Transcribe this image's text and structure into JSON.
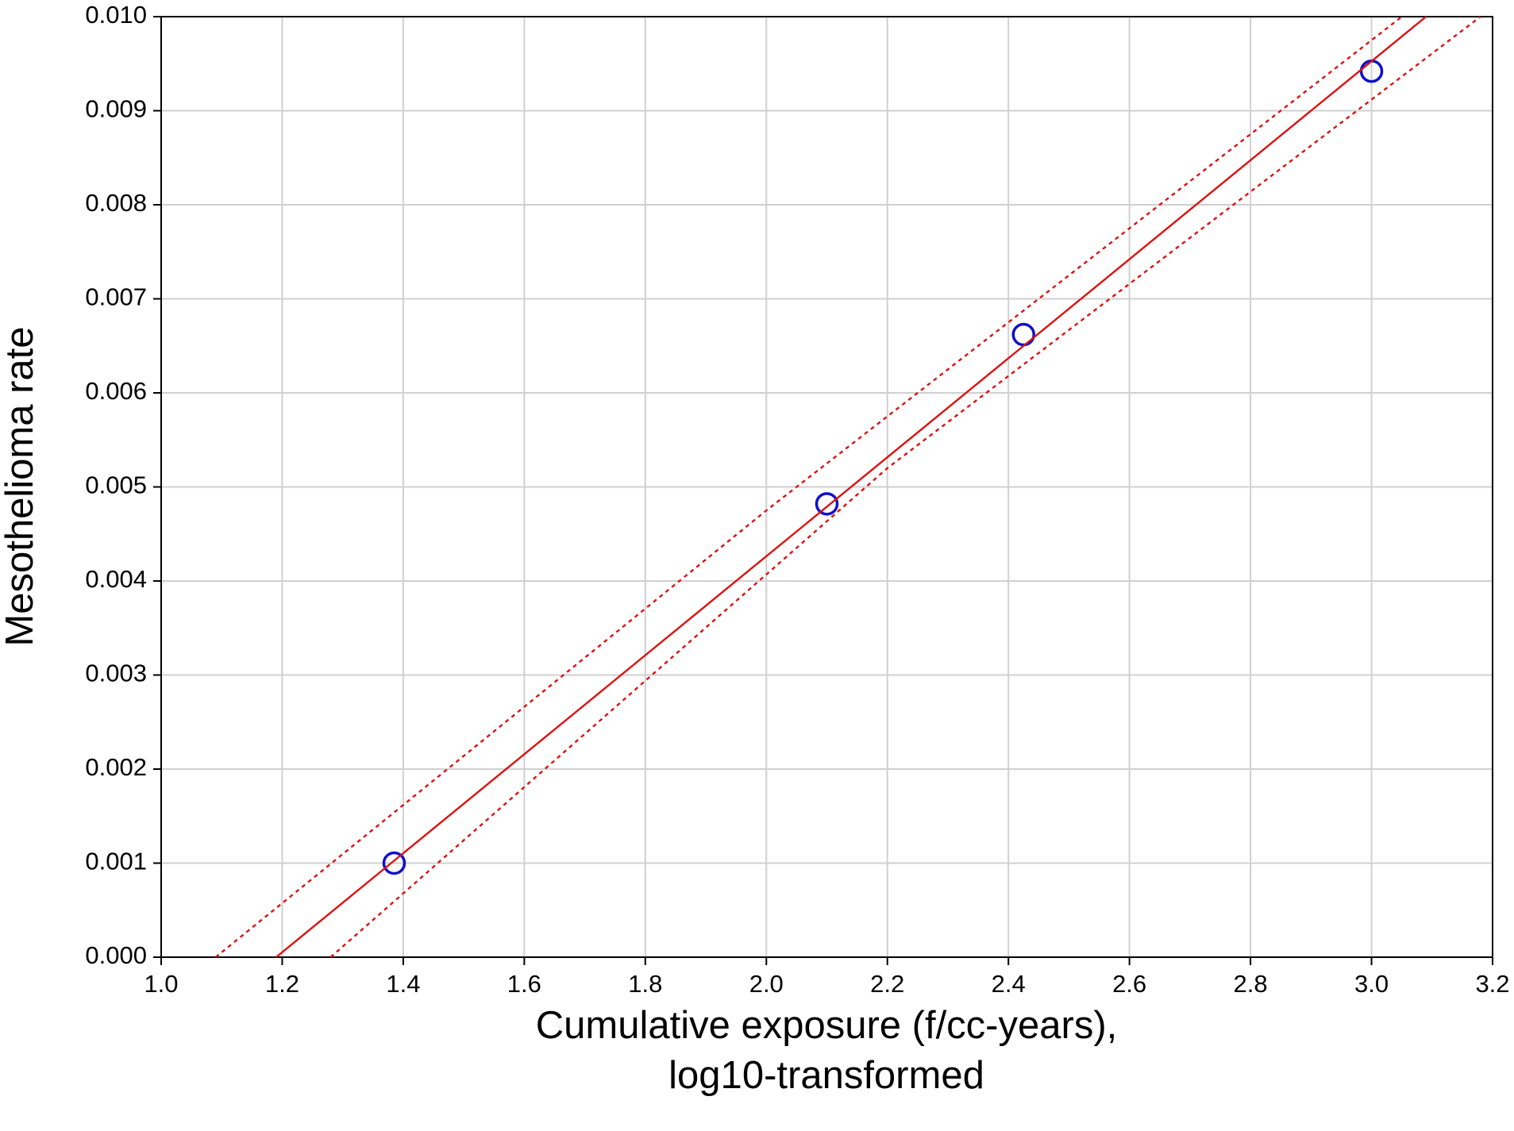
{
  "chart_data": {
    "type": "scatter",
    "x_label": [
      "Cumulative exposure (f/cc-years),",
      "log10-transformed"
    ],
    "y_label": "Mesothelioma rate",
    "xlim": [
      1.0,
      3.2
    ],
    "ylim": [
      0,
      0.01
    ],
    "xticks": [
      {
        "value": 1,
        "label": "1.0"
      },
      1.2,
      1.4,
      1.6,
      1.8,
      {
        "value": 2,
        "label": "2.0"
      },
      2.2,
      2.4,
      2.6,
      2.8,
      {
        "value": 3,
        "label": "3.0"
      },
      3.2
    ],
    "yticks": [
      {
        "value": 0,
        "label": "0.000"
      },
      0.001,
      0.002,
      0.003,
      0.004,
      0.005,
      0.006,
      0.007,
      0.008,
      0.009,
      {
        "value": 0.01,
        "label": "0.010"
      }
    ],
    "grid": true,
    "series": [
      {
        "style": "markers",
        "color": "#1010cc",
        "x": [
          1.385,
          2.1,
          2.425,
          3.0
        ],
        "values": [
          0.001,
          0.00482,
          0.00662,
          0.00942
        ]
      },
      {
        "style": "solid",
        "color": "#dd1111",
        "x": [
          1.19,
          3.09
        ],
        "values": [
          0,
          0.01
        ]
      },
      {
        "style": "dotted",
        "color": "#dd1111",
        "x": [
          1.09,
          2.0,
          3.05
        ],
        "values": [
          0,
          0.00475,
          0.01
        ]
      },
      {
        "style": "dotted",
        "color": "#dd1111",
        "x": [
          1.28,
          2.2,
          3.18
        ],
        "values": [
          0,
          0.0052,
          0.01
        ]
      }
    ]
  }
}
